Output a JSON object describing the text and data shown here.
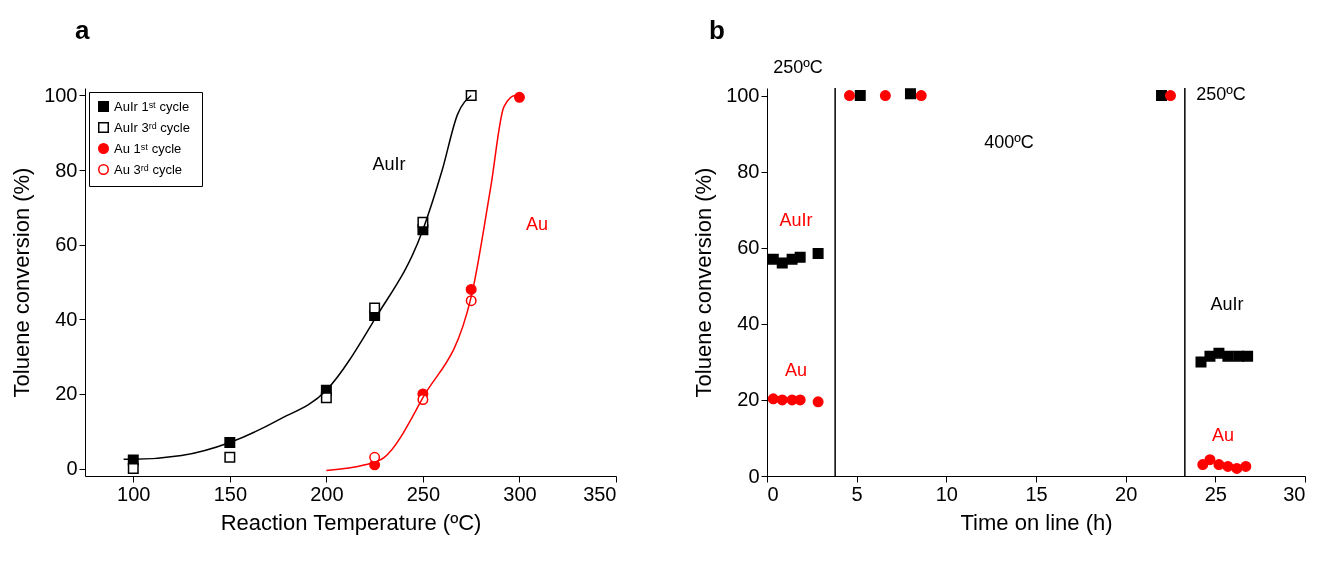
{
  "chart_data": [
    {
      "type": "scatter",
      "title": "a",
      "xlabel": "Reaction Temperature  (ºC)",
      "ylabel": "Toluene conversion  (%)",
      "xlim": [
        75,
        350
      ],
      "ylim": [
        -2,
        102
      ],
      "xticks": [
        100,
        150,
        200,
        250,
        300,
        350
      ],
      "yticks": [
        0,
        20,
        40,
        60,
        80,
        100
      ],
      "legend": "top left",
      "grid": false,
      "series": [
        {
          "name": "AuIr 1ˢᵗ cycle",
          "color": "#000000",
          "marker": "square",
          "x": [
            100,
            150,
            200,
            225,
            250
          ],
          "values": [
            2.3,
            7,
            21,
            41,
            64
          ]
        },
        {
          "name": "AuIr  3ʳᵈ cycle",
          "color": "#000000",
          "marker": "square",
          "x": [
            100,
            150,
            200,
            225,
            250,
            275
          ],
          "values": [
            0,
            3,
            19,
            43,
            66,
            100
          ]
        },
        {
          "name": "Au 1ˢᵗ cycle",
          "color": "#ff0000",
          "marker": "circle",
          "x": [
            225,
            250,
            275,
            300
          ],
          "values": [
            1,
            20,
            48,
            99.5
          ]
        },
        {
          "name": "Au 3ʳᵈ cycle",
          "color": "#ff0000",
          "marker": "circle",
          "x": [
            225,
            250,
            275
          ],
          "values": [
            3,
            18.5,
            45
          ]
        },
        {
          "type": "line",
          "color": "#000000",
          "marker": "none",
          "x": [
            95,
            100,
            125,
            150,
            175,
            200,
            225,
            250,
            260,
            268,
            275
          ],
          "values": [
            2.5,
            2.5,
            3.5,
            7,
            13,
            21,
            40,
            64,
            80,
            95,
            100
          ]
        },
        {
          "type": "line",
          "color": "#ff0000",
          "marker": "none",
          "x": [
            200,
            220,
            230,
            250,
            275,
            285,
            292,
            298,
            301
          ],
          "values": [
            -0.5,
            1,
            3,
            19,
            46,
            75,
            97,
            100,
            100
          ]
        }
      ],
      "annotations": [
        "AuIr",
        "Au"
      ]
    },
    {
      "type": "scatter",
      "title": "b",
      "xlabel": "Time on line (h)",
      "ylabel": "Toluene conversion (%)",
      "xlim": [
        0,
        30
      ],
      "ylim": [
        0,
        102
      ],
      "xticks": [
        0,
        5,
        10,
        15,
        20,
        25,
        30
      ],
      "yticks": [
        0,
        20,
        40,
        60,
        80,
        100
      ],
      "grid": false,
      "series": [
        {
          "color": "#000000",
          "marker": "square",
          "x": [
            0.35,
            0.85,
            1.4,
            1.85,
            2.85,
            5.2,
            8.0,
            22.0,
            24.2,
            24.7,
            25.2,
            25.7,
            26.3,
            26.8
          ],
          "values": [
            57,
            56,
            57,
            57.5,
            58.5,
            100,
            100.5,
            100,
            30,
            31.5,
            32.3,
            31.5,
            31.5,
            31.5
          ]
        },
        {
          "color": "#ff0000",
          "marker": "circle",
          "x": [
            0.35,
            0.85,
            1.4,
            1.85,
            2.85,
            4.6,
            6.6,
            8.6,
            22.5,
            24.3,
            24.7,
            25.2,
            25.7,
            26.2,
            26.7
          ],
          "values": [
            20.3,
            20,
            20,
            20,
            19.5,
            100,
            100,
            100,
            100,
            3,
            4.3,
            3,
            2.5,
            2,
            2.5
          ]
        }
      ],
      "ref_lines": [
        {
          "axis": "x",
          "value": 3.8,
          "color": "#000000"
        },
        {
          "axis": "x",
          "value": 23.3,
          "color": "#000000"
        }
      ],
      "annotations": [
        "250ºC",
        "AuIr",
        "Au",
        "400ºC",
        "250ºC",
        "AuIr",
        "Au"
      ]
    }
  ]
}
